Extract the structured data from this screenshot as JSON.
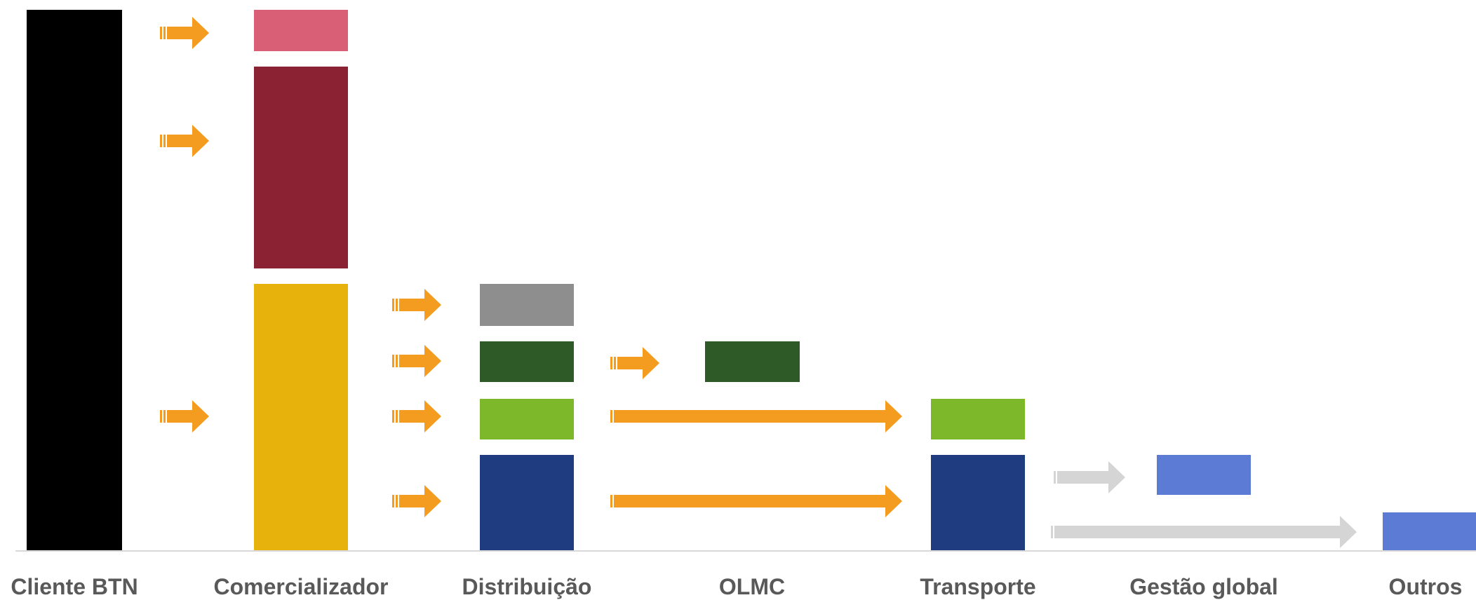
{
  "columns": [
    {
      "key": "cliente",
      "label": "Cliente BTN"
    },
    {
      "key": "comercializador",
      "label": "Comercializador"
    },
    {
      "key": "distribuicao",
      "label": "Distribuição"
    },
    {
      "key": "olmc",
      "label": "OLMC"
    },
    {
      "key": "transporte",
      "label": "Transporte"
    },
    {
      "key": "gestao",
      "label": "Gestão global"
    },
    {
      "key": "outros",
      "label": "Outros"
    }
  ],
  "colors": {
    "black": "#000000",
    "pink": "#d95f76",
    "maroon": "#8b2234",
    "gold": "#e8b20c",
    "gray": "#8e8e8e",
    "dark_green": "#2d5a27",
    "lime": "#7cb82a",
    "navy": "#203c80",
    "blue": "#5b7bd5",
    "orange_arrow": "#f39c1f",
    "gray_arrow": "#d5d5d5",
    "baseline": "#d9d9d9",
    "label": "#595959"
  }
}
